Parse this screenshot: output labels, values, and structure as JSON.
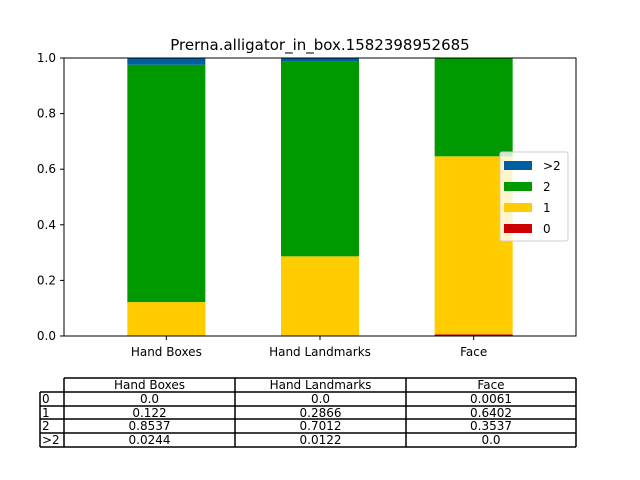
{
  "chart_data": {
    "type": "bar",
    "stacked": true,
    "title": "Prerna.alligator_in_box.1582398952685",
    "xlabel": "",
    "ylabel": "",
    "ylim": [
      0,
      1
    ],
    "yticks": [
      "0.0",
      "0.2",
      "0.4",
      "0.6",
      "0.8",
      "1.0"
    ],
    "categories": [
      "Hand Boxes",
      "Hand Landmarks",
      "Face"
    ],
    "series": [
      {
        "name": "0",
        "values": [
          0.0,
          0.0,
          0.0061
        ],
        "color": "#cc0000"
      },
      {
        "name": "1",
        "values": [
          0.122,
          0.2866,
          0.6402
        ],
        "color": "#ffcc00"
      },
      {
        "name": "2",
        "values": [
          0.8537,
          0.7012,
          0.3537
        ],
        "color": "#009900"
      },
      {
        "name": ">2",
        "values": [
          0.0244,
          0.0122,
          0.0
        ],
        "color": "#005fa0"
      }
    ],
    "legend": {
      "placement": "right",
      "order": [
        ">2",
        "2",
        "1",
        "0"
      ]
    },
    "grid": false,
    "table": {
      "columns": [
        "Hand Boxes",
        "Hand Landmarks",
        "Face"
      ],
      "rows": [
        {
          "label": "0",
          "cells": [
            "0.0",
            "0.0",
            "0.0061"
          ]
        },
        {
          "label": "1",
          "cells": [
            "0.122",
            "0.2866",
            "0.6402"
          ]
        },
        {
          "label": "2",
          "cells": [
            "0.8537",
            "0.7012",
            "0.3537"
          ]
        },
        {
          "label": ">2",
          "cells": [
            "0.0244",
            "0.0122",
            "0.0"
          ]
        }
      ]
    }
  }
}
